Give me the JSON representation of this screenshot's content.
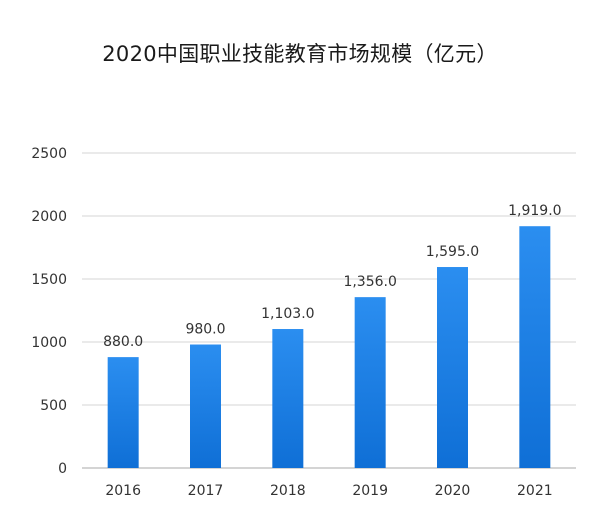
{
  "chart_data": {
    "type": "bar",
    "title": "2020中国职业技能教育市场规模（亿元）",
    "categories": [
      "2016",
      "2017",
      "2018",
      "2019",
      "2020",
      "2021"
    ],
    "values": [
      880.0,
      980.0,
      1103.0,
      1356.0,
      1595.0,
      1919.0
    ],
    "value_labels": [
      "880.0",
      "980.0",
      "1,103.0",
      "1,356.0",
      "1,595.0",
      "1,919.0"
    ],
    "ylim": [
      0,
      2500
    ],
    "yticks": [
      0,
      500,
      1000,
      1500,
      2000,
      2500
    ],
    "ytick_labels": [
      "0",
      "500",
      "1000",
      "1500",
      "2000",
      "2500"
    ],
    "grid": true,
    "xlabel": "",
    "ylabel": "",
    "colors": {
      "bar_top": "#2b8ef0",
      "bar_bottom": "#0f6fd6"
    }
  }
}
